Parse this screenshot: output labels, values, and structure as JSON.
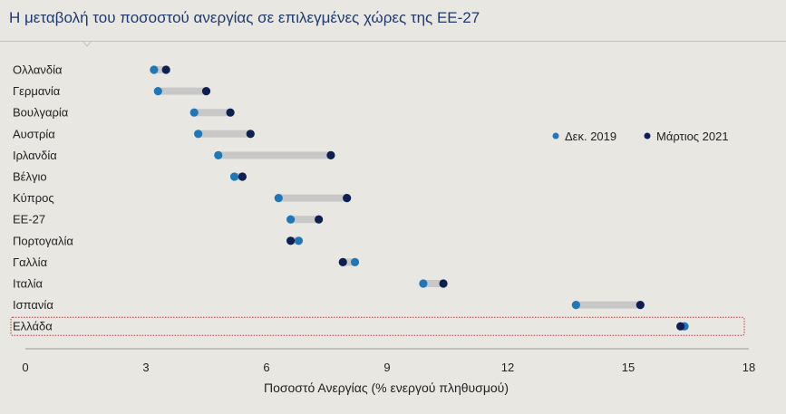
{
  "title": "Η μεταβολή του ποσοστού ανεργίας σε επιλεγμένες χώρες της ΕΕ-27",
  "colors": {
    "series_2019": "#1f77b8",
    "series_2021": "#0e1f52",
    "connector": "#c8c8c8",
    "highlight_border": "#b73a3a",
    "background": "#e9e7e2"
  },
  "chart_data": {
    "type": "dumbbell",
    "title": "Η μεταβολή του ποσοστού ανεργίας σε επιλεγμένες χώρες της ΕΕ-27",
    "xlabel": "Ποσοστό Ανεργίας (% ενεργού πληθυσμού)",
    "ylabel": "",
    "xlim": [
      0,
      18
    ],
    "xticks": [
      0,
      3,
      6,
      9,
      12,
      15,
      18
    ],
    "legend_position": "right",
    "grid": false,
    "categories": [
      "Ολλανδία",
      "Γερμανία",
      "Βουλγαρία",
      "Αυστρία",
      "Ιρλανδία",
      "Βέλγιο",
      "Κύπρος",
      "ΕΕ-27",
      "Πορτογαλία",
      "Γαλλία",
      "Ιταλία",
      "Ισπανία",
      "Ελλάδα"
    ],
    "highlighted": "Ελλάδα",
    "series": [
      {
        "name": "Δεκ. 2019",
        "values": [
          3.2,
          3.3,
          4.2,
          4.3,
          4.8,
          5.2,
          6.3,
          6.6,
          6.8,
          8.2,
          9.9,
          13.7,
          16.4
        ]
      },
      {
        "name": "Μάρτιος 2021",
        "values": [
          3.5,
          4.5,
          5.1,
          5.6,
          7.6,
          5.4,
          8.0,
          7.3,
          6.6,
          7.9,
          10.4,
          15.3,
          16.3
        ]
      }
    ]
  }
}
